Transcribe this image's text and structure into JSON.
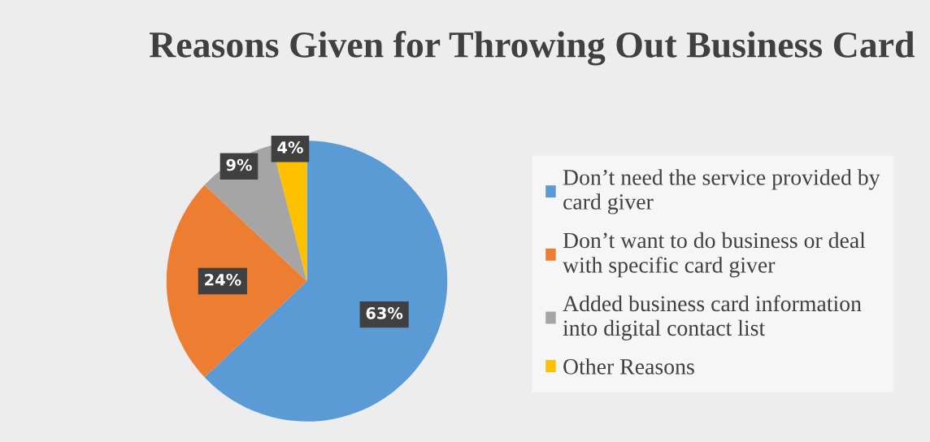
{
  "chart_data": {
    "type": "pie",
    "title": "Reasons Given for Throwing Out Business Card",
    "categories": [
      "Don’t need the service provided by\ncard giver",
      "Don’t want to do business or deal\nwith specific card giver",
      "Added business card information\ninto digital contact list",
      "Other Reasons"
    ],
    "values": [
      63,
      24,
      9,
      4
    ],
    "colors": [
      "#5b9bd5",
      "#ed7d31",
      "#a5a5a5",
      "#ffc000"
    ],
    "value_labels": [
      "63%",
      "24%",
      "9%",
      "4%"
    ],
    "legend": "right"
  }
}
